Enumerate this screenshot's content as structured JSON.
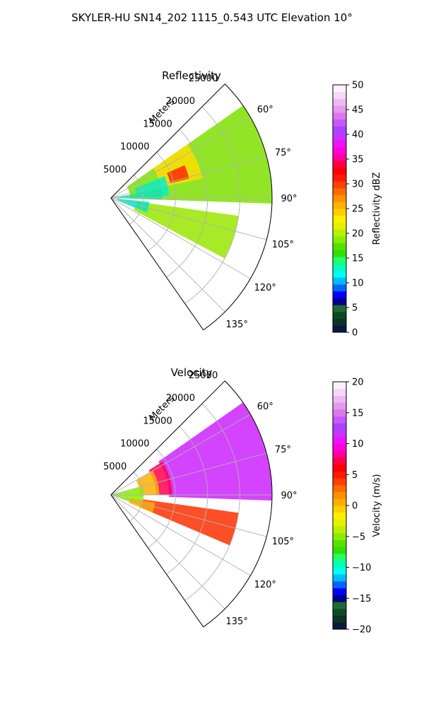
{
  "figure": {
    "suptitle": "SKYLER-HU  SN14_202  1115_0.543 UTC Elevation 10°"
  },
  "chart_data": [
    {
      "type": "heatmap",
      "subtype": "polar-sector (PPI radar)",
      "title": "Reflectivity",
      "radial_axis_label": "Meters",
      "radial_ticks": [
        5000,
        10000,
        15000,
        20000,
        25000
      ],
      "radial_tick_labels": [
        "5000",
        "10000",
        "15000",
        "20000",
        "25000"
      ],
      "rlim": [
        0,
        25000
      ],
      "azimuth_range_deg": [
        45,
        145
      ],
      "azimuth_ticks": [
        "60°",
        "75°",
        "90°",
        "105°",
        "120°",
        "135°"
      ],
      "azimuth_tick_values": [
        60,
        75,
        90,
        105,
        120,
        135
      ],
      "grid": true,
      "colorbar": {
        "label": "Reflectivity dBZ",
        "min": 0,
        "max": 50,
        "ticks": [
          0,
          5,
          10,
          15,
          20,
          25,
          30,
          35,
          40,
          45,
          50
        ],
        "tick_labels": [
          "0",
          "5",
          "10",
          "15",
          "20",
          "25",
          "30",
          "35",
          "40",
          "45",
          "50"
        ],
        "colors": [
          "#081a3f",
          "#0c3326",
          "#0d4a22",
          "#1f6a33",
          "#00008c",
          "#0000ff",
          "#0066ff",
          "#00bbff",
          "#00ffee",
          "#00ffb8",
          "#22ff66",
          "#2fe000",
          "#55e000",
          "#88ee00",
          "#b8f000",
          "#e4f000",
          "#ffee00",
          "#ffd000",
          "#ffb000",
          "#ff9000",
          "#ff6a00",
          "#ff4000",
          "#ff1a00",
          "#ff0000",
          "#ff0044",
          "#ff00a0",
          "#ff00dd",
          "#ee11ff",
          "#c833ff",
          "#a844ff",
          "#cc55ff",
          "#dd77ee",
          "#e699ee",
          "#eeb8f2",
          "#f4d8f8",
          "#fff0ff"
        ]
      },
      "echo_regions": [
        {
          "az": [
            55,
            92
          ],
          "r": [
            3000,
            25000
          ],
          "dbz": 21,
          "color": "#7fe000"
        },
        {
          "az": [
            55,
            78
          ],
          "r": [
            8000,
            14500
          ],
          "dbz": 27,
          "color": "#ffdd00"
        },
        {
          "az": [
            66,
            76
          ],
          "r": [
            9500,
            12500
          ],
          "dbz": 36,
          "color": "#ff2a00"
        },
        {
          "az": [
            68,
            88
          ],
          "r": [
            4000,
            9000
          ],
          "dbz": 15,
          "color": "#00f0c8"
        },
        {
          "az": [
            80,
            92
          ],
          "r": [
            500,
            8000
          ],
          "dbz": 18,
          "color": "#22e0a0"
        },
        {
          "az": [
            98,
            118
          ],
          "r": [
            4000,
            20000
          ],
          "dbz": 20,
          "color": "#99e600"
        },
        {
          "az": [
            96,
            112
          ],
          "r": [
            1000,
            6000
          ],
          "dbz": 14,
          "color": "#00e6c0"
        }
      ]
    },
    {
      "type": "heatmap",
      "subtype": "polar-sector (PPI radar)",
      "title": "Velocity",
      "radial_axis_label": "Meters",
      "radial_ticks": [
        5000,
        10000,
        15000,
        20000,
        25000
      ],
      "radial_tick_labels": [
        "5000",
        "10000",
        "15000",
        "20000",
        "25000"
      ],
      "rlim": [
        0,
        25000
      ],
      "azimuth_range_deg": [
        45,
        145
      ],
      "azimuth_ticks": [
        "60°",
        "75°",
        "90°",
        "105°",
        "120°",
        "135°"
      ],
      "azimuth_tick_values": [
        60,
        75,
        90,
        105,
        120,
        135
      ],
      "grid": true,
      "colorbar": {
        "label": "Velocity (m/s)",
        "min": -20,
        "max": 20,
        "ticks": [
          -20,
          -15,
          -10,
          -5,
          0,
          5,
          10,
          15,
          20
        ],
        "tick_labels": [
          "−20",
          "−15",
          "−10",
          "−5",
          "0",
          "5",
          "10",
          "15",
          "20"
        ],
        "colors": [
          "#081a3f",
          "#0c3326",
          "#0d4a22",
          "#1f6a33",
          "#00008c",
          "#0000ff",
          "#0066ff",
          "#00bbff",
          "#00ffee",
          "#00ffb8",
          "#22ff66",
          "#2fe000",
          "#55e000",
          "#88ee00",
          "#b8f000",
          "#e4f000",
          "#ffee00",
          "#ffd000",
          "#ffb000",
          "#ff9000",
          "#ff6a00",
          "#ff4000",
          "#ff1a00",
          "#ff0000",
          "#ff0044",
          "#ff00a0",
          "#ff00dd",
          "#ee11ff",
          "#c833ff",
          "#a844ff",
          "#cc55ff",
          "#dd77ee",
          "#e699ee",
          "#eeb8f2",
          "#f4d8f8",
          "#fff0ff"
        ]
      },
      "echo_regions": [
        {
          "az": [
            55,
            92
          ],
          "r": [
            9000,
            25000
          ],
          "ms": 14,
          "color": "#cc22ff"
        },
        {
          "az": [
            57,
            90
          ],
          "r": [
            7000,
            9500
          ],
          "ms": 10,
          "color": "#ff0055"
        },
        {
          "az": [
            60,
            90
          ],
          "r": [
            4500,
            7500
          ],
          "ms": 3,
          "color": "#ffb000"
        },
        {
          "az": [
            75,
            110
          ],
          "r": [
            500,
            5000
          ],
          "ms": -3,
          "color": "#88ee00"
        },
        {
          "az": [
            98,
            113
          ],
          "r": [
            5000,
            20000
          ],
          "ms": 9,
          "color": "#ff3000"
        },
        {
          "az": [
            100,
            113
          ],
          "r": [
            3000,
            7000
          ],
          "ms": 4,
          "color": "#ffaa00"
        }
      ]
    }
  ]
}
